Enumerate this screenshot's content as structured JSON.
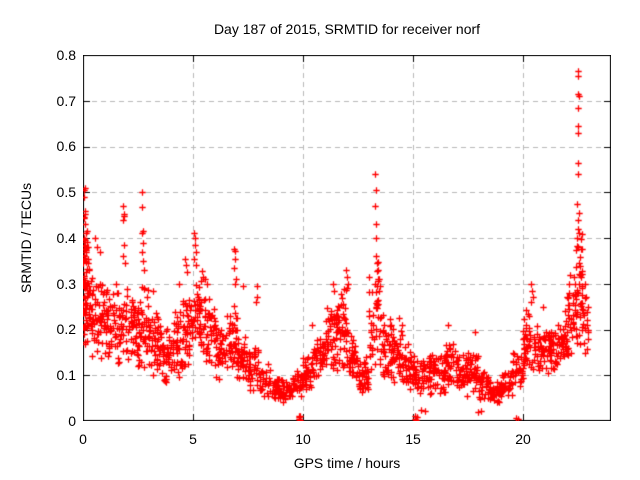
{
  "chart_data": {
    "type": "scatter",
    "title": "Day 187 of 2015, SRMTID for receiver norf",
    "xlabel": "GPS time / hours",
    "ylabel": "SRMTID / TECUs",
    "xlim": [
      0,
      24
    ],
    "ylim": [
      0,
      0.8
    ],
    "x_ticks": [
      0,
      5,
      10,
      15,
      20
    ],
    "y_ticks": [
      0,
      0.1,
      0.2,
      0.3,
      0.4,
      0.5,
      0.6,
      0.7,
      0.8
    ],
    "x_tick_labels": [
      "0",
      "5",
      "10",
      "15",
      "20"
    ],
    "y_tick_labels": [
      "0",
      "0.1",
      "0.2",
      "0.3",
      "0.4",
      "0.5",
      "0.6",
      "0.7",
      "0.8"
    ],
    "grid": true,
    "legend": "none",
    "marker": "plus",
    "marker_size": 7,
    "marker_color": "#ff0000",
    "grid_color": "#b8b8b8",
    "axis_color": "#000000",
    "background_color": "#ffffff",
    "seed": 987654321,
    "outlier_points": [
      [
        0.05,
        0.505
      ],
      [
        0.09,
        0.51
      ],
      [
        0.05,
        0.49
      ],
      [
        0.07,
        0.46
      ],
      [
        0.05,
        0.445
      ],
      [
        0.08,
        0.43
      ],
      [
        0.06,
        0.4
      ],
      [
        0.04,
        0.385
      ],
      [
        0.06,
        0.37
      ],
      [
        0.55,
        0.4
      ],
      [
        0.62,
        0.38
      ],
      [
        0.78,
        0.37
      ],
      [
        1.82,
        0.47
      ],
      [
        1.85,
        0.452
      ],
      [
        1.88,
        0.448
      ],
      [
        1.84,
        0.44
      ],
      [
        1.86,
        0.385
      ],
      [
        1.83,
        0.36
      ],
      [
        1.9,
        0.345
      ],
      [
        2.68,
        0.5
      ],
      [
        2.7,
        0.468
      ],
      [
        2.72,
        0.415
      ],
      [
        2.66,
        0.41
      ],
      [
        2.74,
        0.39
      ],
      [
        2.69,
        0.37
      ],
      [
        2.71,
        0.35
      ],
      [
        2.75,
        0.33
      ],
      [
        3.2,
        0.285
      ],
      [
        4.35,
        0.3
      ],
      [
        4.65,
        0.355
      ],
      [
        4.7,
        0.34
      ],
      [
        4.72,
        0.325
      ],
      [
        5.05,
        0.41
      ],
      [
        5.1,
        0.4
      ],
      [
        5.08,
        0.385
      ],
      [
        5.12,
        0.37
      ],
      [
        5.06,
        0.355
      ],
      [
        5.15,
        0.34
      ],
      [
        5.55,
        0.31
      ],
      [
        5.62,
        0.3
      ],
      [
        6.88,
        0.375
      ],
      [
        6.92,
        0.372
      ],
      [
        6.9,
        0.355
      ],
      [
        6.86,
        0.335
      ],
      [
        6.94,
        0.31
      ],
      [
        6.89,
        0.3
      ],
      [
        7.25,
        0.295
      ],
      [
        7.9,
        0.295
      ],
      [
        7.92,
        0.27
      ],
      [
        7.88,
        0.26
      ],
      [
        9.8,
        0.005
      ],
      [
        9.83,
        0.008
      ],
      [
        9.86,
        0.003
      ],
      [
        9.81,
        0.012
      ],
      [
        9.84,
        0.0
      ],
      [
        9.87,
        0.01
      ],
      [
        10.4,
        0.21
      ],
      [
        11.38,
        0.3
      ],
      [
        11.42,
        0.285
      ],
      [
        11.95,
        0.33
      ],
      [
        12.0,
        0.315
      ],
      [
        12.05,
        0.3
      ],
      [
        11.98,
        0.29
      ],
      [
        13.28,
        0.54
      ],
      [
        13.3,
        0.505
      ],
      [
        13.29,
        0.47
      ],
      [
        13.31,
        0.43
      ],
      [
        13.3,
        0.4
      ],
      [
        13.33,
        0.36
      ],
      [
        13.36,
        0.345
      ],
      [
        13.4,
        0.33
      ],
      [
        13.45,
        0.31
      ],
      [
        13.5,
        0.295
      ],
      [
        13.25,
        0.3
      ],
      [
        14.35,
        0.225
      ],
      [
        14.5,
        0.21
      ],
      [
        15.1,
        0.004
      ],
      [
        15.13,
        0.0
      ],
      [
        15.16,
        0.008
      ],
      [
        15.11,
        0.012
      ],
      [
        15.14,
        0.002
      ],
      [
        15.35,
        0.025
      ],
      [
        15.55,
        0.022
      ],
      [
        16.6,
        0.21
      ],
      [
        17.8,
        0.195
      ],
      [
        17.95,
        0.02
      ],
      [
        18.1,
        0.022
      ],
      [
        19.7,
        0.006
      ],
      [
        19.78,
        0.004
      ],
      [
        20.38,
        0.3
      ],
      [
        20.42,
        0.285
      ],
      [
        20.45,
        0.27
      ],
      [
        20.35,
        0.26
      ],
      [
        20.9,
        0.25
      ],
      [
        21.9,
        0.24
      ],
      [
        22.05,
        0.27
      ],
      [
        22.1,
        0.3
      ],
      [
        22.15,
        0.32
      ],
      [
        22.48,
        0.765
      ],
      [
        22.52,
        0.755
      ],
      [
        22.49,
        0.715
      ],
      [
        22.53,
        0.71
      ],
      [
        22.5,
        0.685
      ],
      [
        22.51,
        0.645
      ],
      [
        22.49,
        0.63
      ],
      [
        22.52,
        0.565
      ],
      [
        22.5,
        0.54
      ],
      [
        22.47,
        0.475
      ],
      [
        22.53,
        0.455
      ],
      [
        22.48,
        0.44
      ],
      [
        22.51,
        0.42
      ],
      [
        22.55,
        0.41
      ],
      [
        22.45,
        0.4
      ],
      [
        22.8,
        0.3
      ],
      [
        22.85,
        0.27
      ],
      [
        22.9,
        0.22
      ],
      [
        22.95,
        0.18
      ]
    ],
    "density_bands": [
      [
        0.0,
        0.3,
        0.14,
        0.42,
        55
      ],
      [
        0.0,
        0.15,
        0.2,
        0.51,
        18
      ],
      [
        0.3,
        1.0,
        0.13,
        0.34,
        60
      ],
      [
        1.0,
        1.5,
        0.12,
        0.3,
        40
      ],
      [
        1.5,
        2.0,
        0.11,
        0.33,
        42
      ],
      [
        2.0,
        2.5,
        0.11,
        0.28,
        40
      ],
      [
        2.5,
        3.0,
        0.1,
        0.31,
        45
      ],
      [
        3.0,
        3.5,
        0.09,
        0.25,
        40
      ],
      [
        3.5,
        4.0,
        0.075,
        0.22,
        40
      ],
      [
        4.0,
        4.5,
        0.09,
        0.26,
        40
      ],
      [
        4.5,
        5.0,
        0.1,
        0.32,
        45
      ],
      [
        5.0,
        5.5,
        0.11,
        0.33,
        45
      ],
      [
        5.5,
        6.0,
        0.1,
        0.3,
        40
      ],
      [
        6.0,
        6.5,
        0.08,
        0.22,
        40
      ],
      [
        6.5,
        7.0,
        0.08,
        0.26,
        40
      ],
      [
        7.0,
        7.5,
        0.07,
        0.2,
        40
      ],
      [
        7.5,
        8.0,
        0.06,
        0.18,
        38
      ],
      [
        8.0,
        8.5,
        0.05,
        0.13,
        34
      ],
      [
        8.5,
        9.0,
        0.04,
        0.11,
        34
      ],
      [
        9.0,
        9.5,
        0.04,
        0.1,
        34
      ],
      [
        9.5,
        10.0,
        0.04,
        0.12,
        34
      ],
      [
        10.0,
        10.5,
        0.06,
        0.16,
        36
      ],
      [
        10.5,
        11.0,
        0.08,
        0.2,
        40
      ],
      [
        11.0,
        11.5,
        0.1,
        0.28,
        44
      ],
      [
        11.5,
        12.0,
        0.1,
        0.3,
        48
      ],
      [
        12.0,
        12.5,
        0.07,
        0.2,
        40
      ],
      [
        12.5,
        13.0,
        0.05,
        0.15,
        40
      ],
      [
        13.0,
        13.5,
        0.1,
        0.36,
        44
      ],
      [
        13.5,
        14.0,
        0.08,
        0.25,
        40
      ],
      [
        14.0,
        14.5,
        0.07,
        0.22,
        40
      ],
      [
        14.5,
        15.0,
        0.06,
        0.18,
        38
      ],
      [
        15.0,
        15.5,
        0.05,
        0.15,
        38
      ],
      [
        15.5,
        16.0,
        0.05,
        0.16,
        38
      ],
      [
        16.0,
        16.5,
        0.05,
        0.17,
        38
      ],
      [
        16.5,
        17.0,
        0.06,
        0.18,
        38
      ],
      [
        17.0,
        17.5,
        0.05,
        0.15,
        38
      ],
      [
        17.5,
        18.0,
        0.05,
        0.17,
        38
      ],
      [
        18.0,
        18.5,
        0.04,
        0.12,
        36
      ],
      [
        18.5,
        19.0,
        0.03,
        0.1,
        36
      ],
      [
        19.0,
        19.5,
        0.04,
        0.12,
        34
      ],
      [
        19.5,
        20.0,
        0.06,
        0.16,
        34
      ],
      [
        20.0,
        20.5,
        0.1,
        0.25,
        40
      ],
      [
        20.5,
        21.0,
        0.1,
        0.22,
        40
      ],
      [
        21.0,
        21.5,
        0.1,
        0.2,
        38
      ],
      [
        21.5,
        22.0,
        0.11,
        0.22,
        40
      ],
      [
        22.0,
        22.3,
        0.13,
        0.3,
        26
      ],
      [
        22.3,
        22.7,
        0.15,
        0.45,
        50
      ],
      [
        22.7,
        23.0,
        0.12,
        0.28,
        14
      ]
    ]
  }
}
